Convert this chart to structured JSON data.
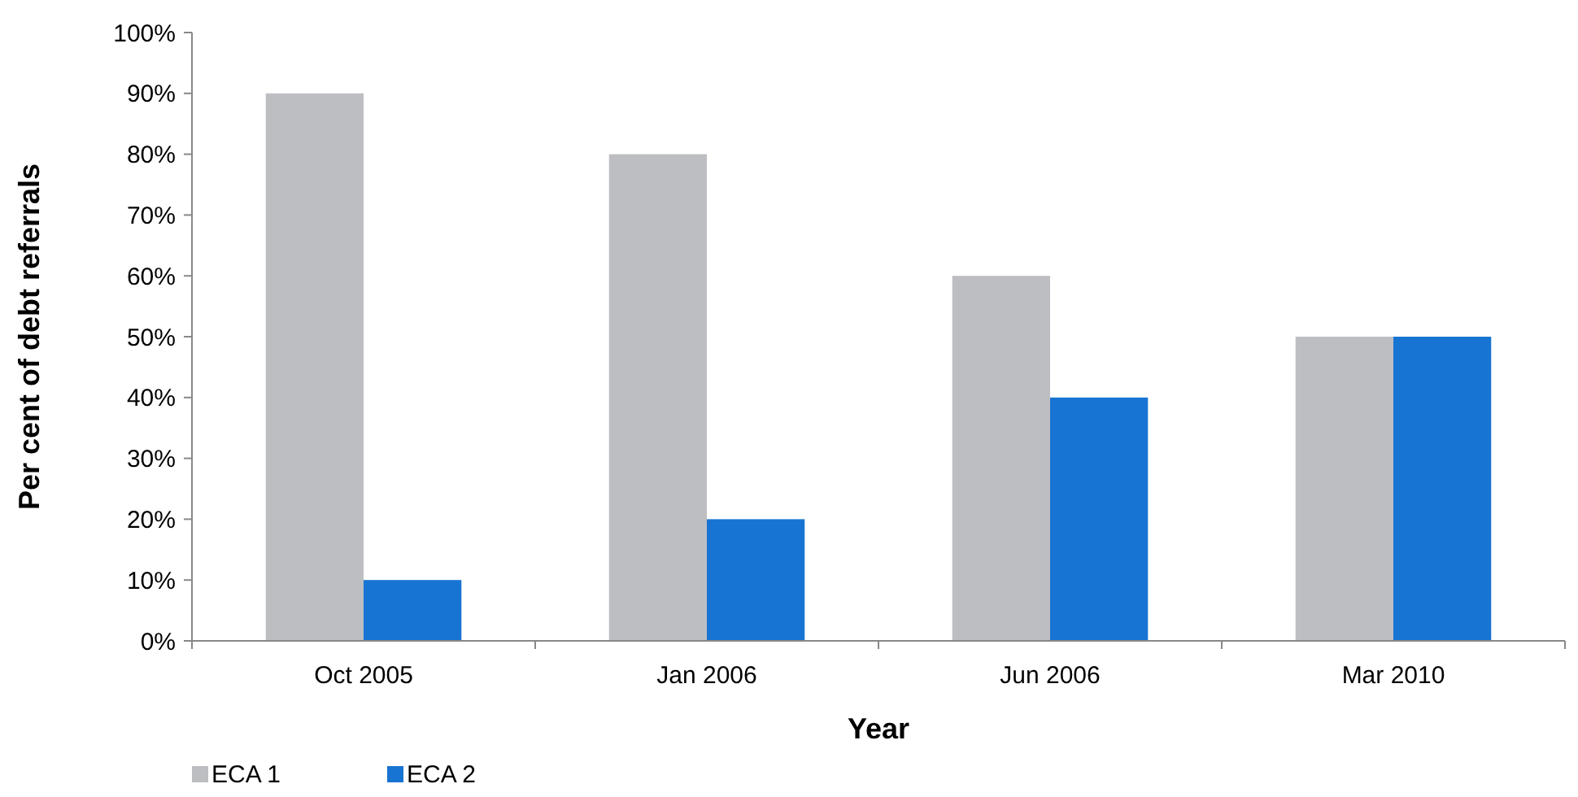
{
  "chart_data": {
    "type": "bar",
    "xlabel": "Year",
    "ylabel": "Per cent of debt referrals",
    "categories": [
      "Oct 2005",
      "Jan 2006",
      "Jun 2006",
      "Mar 2010"
    ],
    "series": [
      {
        "name": "ECA 1",
        "color": "#bdbec2",
        "values": [
          90,
          80,
          60,
          50
        ]
      },
      {
        "name": "ECA 2",
        "color": "#1874d2",
        "values": [
          10,
          20,
          40,
          50
        ]
      }
    ],
    "ylim": [
      0,
      100
    ],
    "yticks": [
      {
        "value": 0,
        "label": "0%"
      },
      {
        "value": 10,
        "label": "10%"
      },
      {
        "value": 20,
        "label": "20%"
      },
      {
        "value": 30,
        "label": "30%"
      },
      {
        "value": 40,
        "label": "40%"
      },
      {
        "value": 50,
        "label": "50%"
      },
      {
        "value": 60,
        "label": "60%"
      },
      {
        "value": 70,
        "label": "70%"
      },
      {
        "value": 80,
        "label": "80%"
      },
      {
        "value": 90,
        "label": "90%"
      },
      {
        "value": 100,
        "label": "100%"
      }
    ],
    "grid": false,
    "legend": "bottom left"
  }
}
